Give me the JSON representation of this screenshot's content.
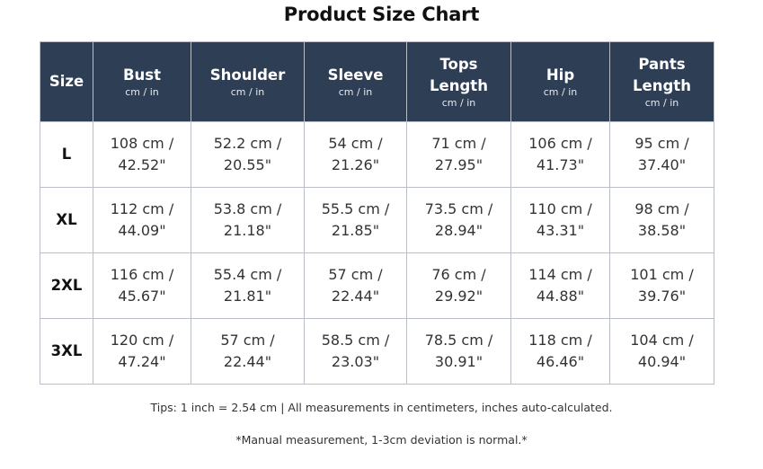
{
  "title": "Product Size Chart",
  "headers": [
    {
      "label": "Size",
      "unit": ""
    },
    {
      "label": "Bust",
      "unit": "cm / in"
    },
    {
      "label": "Shoulder",
      "unit": "cm / in"
    },
    {
      "label": "Sleeve",
      "unit": "cm / in"
    },
    {
      "label": "Tops Length",
      "unit": "cm / in"
    },
    {
      "label": "Hip",
      "unit": "cm / in"
    },
    {
      "label": "Pants Length",
      "unit": "cm / in"
    }
  ],
  "rows": [
    {
      "size": "L",
      "cells": [
        [
          "108 cm /",
          "42.52\""
        ],
        [
          "52.2 cm /",
          "20.55\""
        ],
        [
          "54 cm /",
          "21.26\""
        ],
        [
          "71 cm /",
          "27.95\""
        ],
        [
          "106 cm /",
          "41.73\""
        ],
        [
          "95 cm /",
          "37.40\""
        ]
      ]
    },
    {
      "size": "XL",
      "cells": [
        [
          "112 cm /",
          "44.09\""
        ],
        [
          "53.8 cm /",
          "21.18\""
        ],
        [
          "55.5 cm /",
          "21.85\""
        ],
        [
          "73.5 cm /",
          "28.94\""
        ],
        [
          "110 cm /",
          "43.31\""
        ],
        [
          "98 cm /",
          "38.58\""
        ]
      ]
    },
    {
      "size": "2XL",
      "cells": [
        [
          "116 cm /",
          "45.67\""
        ],
        [
          "55.4 cm /",
          "21.81\""
        ],
        [
          "57 cm /",
          "22.44\""
        ],
        [
          "76 cm /",
          "29.92\""
        ],
        [
          "114 cm /",
          "44.88\""
        ],
        [
          "101 cm /",
          "39.76\""
        ]
      ]
    },
    {
      "size": "3XL",
      "cells": [
        [
          "120 cm /",
          "47.24\""
        ],
        [
          "57 cm /",
          "22.44\""
        ],
        [
          "58.5 cm /",
          "23.03\""
        ],
        [
          "78.5 cm /",
          "30.91\""
        ],
        [
          "118 cm /",
          "46.46\""
        ],
        [
          "104 cm /",
          "40.94\""
        ]
      ]
    }
  ],
  "tips": "Tips: 1 inch = 2.54 cm | All measurements in centimeters, inches auto-calculated.",
  "note": "*Manual measurement, 1-3cm deviation is normal.*",
  "colors": {
    "header_bg": "#2d3e55",
    "border": "#b9bec6"
  }
}
